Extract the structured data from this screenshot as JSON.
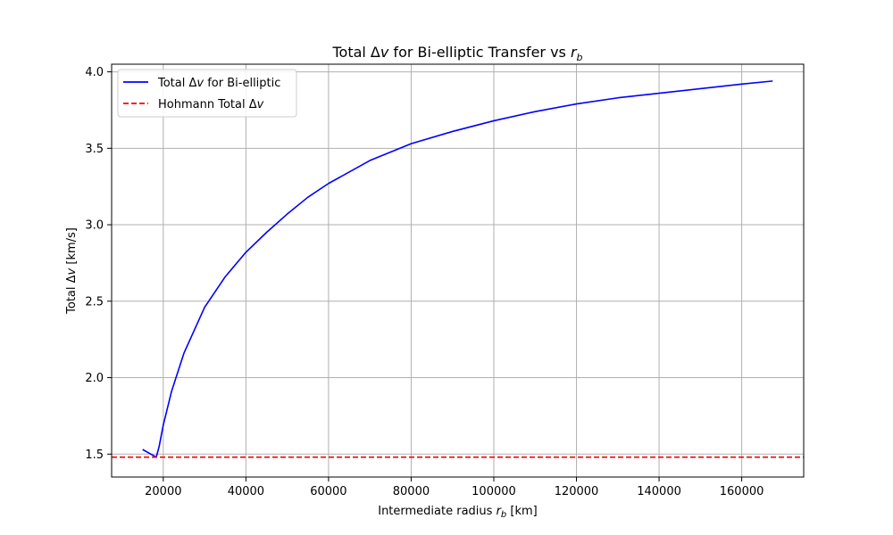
{
  "chart_data": {
    "type": "line",
    "title": {
      "pre": "Total Δ",
      "var": "v",
      "mid": " for Bi-elliptic Transfer vs ",
      "rvar": "r",
      "sub": "b"
    },
    "xlabel": {
      "pre": "Intermediate radius ",
      "var": "r",
      "sub": "b",
      "post": " [km]"
    },
    "ylabel": {
      "pre": "Total Δ",
      "var": "v",
      "post": " [km/s]"
    },
    "xlim": [
      7500,
      175000
    ],
    "ylim": [
      1.35,
      4.05
    ],
    "xticks": [
      20000,
      40000,
      60000,
      80000,
      100000,
      120000,
      140000,
      160000
    ],
    "yticks": [
      1.5,
      2.0,
      2.5,
      3.0,
      3.5,
      4.0
    ],
    "grid": true,
    "legend_position": "upper-left",
    "series": [
      {
        "name": {
          "pre": "Total Δ",
          "var": "v",
          "post": " for Bi-elliptic"
        },
        "style": "solid",
        "color": "#0000ff",
        "x": [
          15000,
          18300,
          19000,
          20000,
          22000,
          25000,
          30000,
          35000,
          40000,
          45000,
          50000,
          55000,
          60000,
          70000,
          80000,
          90000,
          100000,
          110000,
          120000,
          130000,
          140000,
          150000,
          160000,
          167500
        ],
        "y": [
          1.53,
          1.48,
          1.55,
          1.69,
          1.91,
          2.16,
          2.46,
          2.66,
          2.82,
          2.95,
          3.07,
          3.18,
          3.27,
          3.42,
          3.53,
          3.61,
          3.68,
          3.74,
          3.79,
          3.83,
          3.86,
          3.89,
          3.92,
          3.94
        ]
      },
      {
        "name": {
          "pre": "Hohmann Total Δ",
          "var": "v",
          "post": ""
        },
        "style": "dashed",
        "color": "#ff0000",
        "hline": 1.48
      }
    ]
  }
}
